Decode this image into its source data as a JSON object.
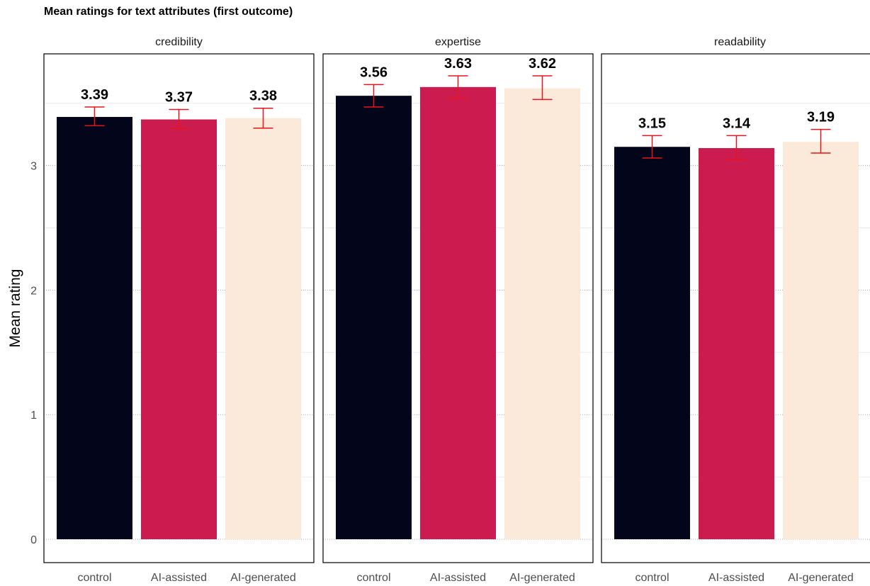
{
  "chart_data": {
    "type": "bar",
    "title": "Mean ratings for text attributes (first outcome)",
    "ylabel": "Mean rating",
    "xlabel": "",
    "ylim": [
      0,
      3.9
    ],
    "yticks": [
      0,
      1,
      2,
      3
    ],
    "grid": true,
    "categories": [
      "control",
      "AI-assisted",
      "AI-generated"
    ],
    "colors": [
      "#03061b",
      "#cc1c4f",
      "#fbe9da"
    ],
    "errorbar_color": "#e8141c",
    "panels": [
      {
        "name": "credibility",
        "values": [
          3.39,
          3.37,
          3.38
        ],
        "labels": [
          "3.39",
          "3.37",
          "3.38"
        ],
        "error_low": [
          3.32,
          3.3,
          3.3
        ],
        "error_high": [
          3.47,
          3.45,
          3.46
        ]
      },
      {
        "name": "expertise",
        "values": [
          3.56,
          3.63,
          3.62
        ],
        "labels": [
          "3.56",
          "3.63",
          "3.62"
        ],
        "error_low": [
          3.47,
          3.54,
          3.53
        ],
        "error_high": [
          3.65,
          3.72,
          3.72
        ]
      },
      {
        "name": "readability",
        "values": [
          3.15,
          3.14,
          3.19
        ],
        "labels": [
          "3.15",
          "3.14",
          "3.19"
        ],
        "error_low": [
          3.06,
          3.05,
          3.1
        ],
        "error_high": [
          3.24,
          3.24,
          3.29
        ]
      }
    ]
  }
}
